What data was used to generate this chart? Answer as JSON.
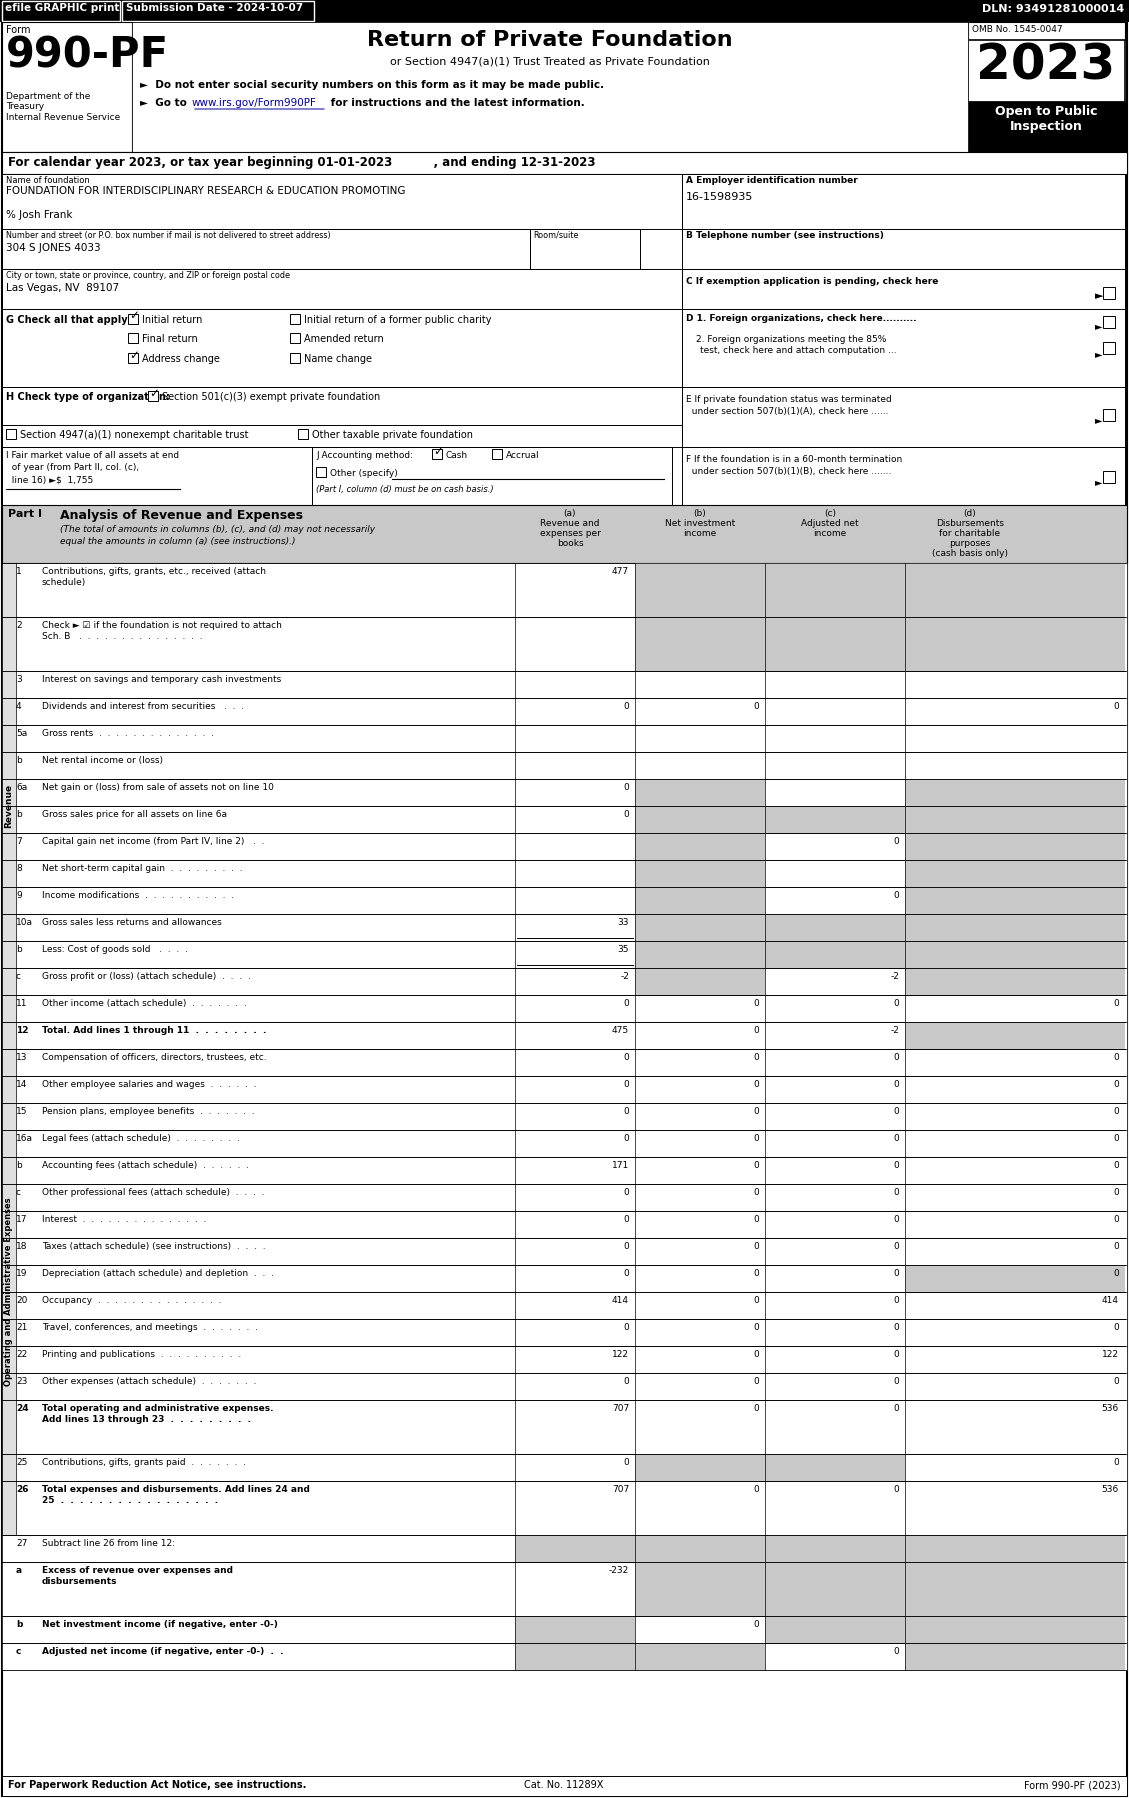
{
  "form_number": "990-PF",
  "omb": "OMB No. 1545-0047",
  "year": "2023",
  "return_title": "Return of Private Foundation",
  "return_subtitle": "or Section 4947(a)(1) Trust Treated as Private Foundation",
  "bullet1": "►  Do not enter social security numbers on this form as it may be made public.",
  "bullet2_pre": "►  Go to ",
  "bullet2_link": "www.irs.gov/Form990PF",
  "bullet2_post": " for instructions and the latest information.",
  "dept": "Department of the\nTreasury\nInternal Revenue Service",
  "cal_year": "For calendar year 2023, or tax year beginning 01-01-2023          , and ending 12-31-2023",
  "name_label": "Name of foundation",
  "name_value": "FOUNDATION FOR INTERDISCIPLINARY RESEARCH & EDUCATION PROMOTING",
  "care_of": "% Josh Frank",
  "address_label": "Number and street (or P.O. box number if mail is not delivered to street address)",
  "address_value": "304 S JONES 4033",
  "room_label": "Room/suite",
  "city_label": "City or town, state or province, country, and ZIP or foreign postal code",
  "city_value": "Las Vegas, NV  89107",
  "ein_label": "A Employer identification number",
  "ein_value": "16-1598935",
  "phone_label": "B Telephone number (see instructions)",
  "exempt_label": "C If exemption application is pending, check here",
  "g_label": "G Check all that apply:",
  "d1_label": "D 1. Foreign organizations, check here.............",
  "d2a_label": "2. Foreign organizations meeting the 85%",
  "d2b_label": "   test, check here and attach computation ...",
  "e_label1": "E If private foundation status was terminated",
  "e_label2": "  under section 507(b)(1)(A), check here ......",
  "h_label": "H Check type of organization:",
  "f_label1": "F If the foundation is in a 60-month termination",
  "f_label2": "  under section 507(b)(1)(B), check here .......",
  "i_label1": "I Fair market value of all assets at end",
  "i_label2": "  of year (from Part II, col. (c),",
  "i_label3": "  line 16) ►$ 1,755",
  "j_label": "J Accounting method:",
  "j_note": "(Part I, column (d) must be on cash basis.)",
  "part1_title": "Part I",
  "part1_subtitle": "Analysis of Revenue and Expenses",
  "part1_italic": "(The total of amounts in columns (b), (c), and (d) may not necessarily equal the amounts in column (a) (see instructions).)",
  "footer_left": "For Paperwork Reduction Act Notice, see instructions.",
  "footer_cat": "Cat. No. 11289X",
  "footer_right": "Form 990-PF (2023)",
  "revenue_rows": [
    {
      "num": "1",
      "label": "Contributions, gifts, grants, etc., received (attach\nschedule)",
      "a": "477",
      "b": "",
      "c": "",
      "d": "",
      "gray_b": true,
      "gray_c": true,
      "gray_d": true
    },
    {
      "num": "2",
      "label": "Check ► ☑ if the foundation is not required to attach\nSch. B   .  .  .  .  .  .  .  .  .  .  .  .  .  .  .",
      "a": "",
      "b": "",
      "c": "",
      "d": "",
      "gray_b": true,
      "gray_c": true,
      "gray_d": true
    },
    {
      "num": "3",
      "label": "Interest on savings and temporary cash investments",
      "a": "",
      "b": "",
      "c": "",
      "d": "",
      "gray_b": false,
      "gray_c": false,
      "gray_d": false
    },
    {
      "num": "4",
      "label": "Dividends and interest from securities   .  .  .",
      "a": "0",
      "b": "0",
      "c": "",
      "d": "0",
      "gray_b": false,
      "gray_c": false,
      "gray_d": false
    },
    {
      "num": "5a",
      "label": "Gross rents  .  .  .  .  .  .  .  .  .  .  .  .  .  .",
      "a": "",
      "b": "",
      "c": "",
      "d": "",
      "gray_b": false,
      "gray_c": false,
      "gray_d": false
    },
    {
      "num": "b",
      "label": "Net rental income or (loss)",
      "a": "",
      "b": "",
      "c": "",
      "d": "",
      "gray_b": false,
      "gray_c": false,
      "gray_d": false
    },
    {
      "num": "6a",
      "label": "Net gain or (loss) from sale of assets not on line 10",
      "a": "0",
      "b": "",
      "c": "",
      "d": "",
      "gray_b": true,
      "gray_c": false,
      "gray_d": true
    },
    {
      "num": "b",
      "label": "Gross sales price for all assets on line 6a",
      "a": "0",
      "b": "",
      "c": "",
      "d": "",
      "gray_b": true,
      "gray_c": true,
      "gray_d": true
    },
    {
      "num": "7",
      "label": "Capital gain net income (from Part IV, line 2)   .  .",
      "a": "",
      "b": "",
      "c": "0",
      "d": "",
      "gray_b": true,
      "gray_c": false,
      "gray_d": true
    },
    {
      "num": "8",
      "label": "Net short-term capital gain  .  .  .  .  .  .  .  .  .",
      "a": "",
      "b": "",
      "c": "",
      "d": "",
      "gray_b": true,
      "gray_c": false,
      "gray_d": true
    },
    {
      "num": "9",
      "label": "Income modifications  .  .  .  .  .  .  .  .  .  .  .",
      "a": "",
      "b": "",
      "c": "0",
      "d": "",
      "gray_b": true,
      "gray_c": false,
      "gray_d": true
    },
    {
      "num": "10a",
      "label": "Gross sales less returns and allowances",
      "a": "33",
      "b": "",
      "c": "",
      "d": "",
      "gray_b": true,
      "gray_c": true,
      "gray_d": true,
      "underline_a": true
    },
    {
      "num": "b",
      "label": "Less: Cost of goods sold   .  .  .  .",
      "a": "35",
      "b": "",
      "c": "",
      "d": "",
      "gray_b": true,
      "gray_c": true,
      "gray_d": true,
      "underline_a": true
    },
    {
      "num": "c",
      "label": "Gross profit or (loss) (attach schedule)  .  .  .  .",
      "a": "-2",
      "b": "",
      "c": "-2",
      "d": "",
      "gray_b": true,
      "gray_c": false,
      "gray_d": true
    },
    {
      "num": "11",
      "label": "Other income (attach schedule)  .  .  .  .  .  .  .",
      "a": "0",
      "b": "0",
      "c": "0",
      "d": "0",
      "gray_b": false,
      "gray_c": false,
      "gray_d": false
    },
    {
      "num": "12",
      "label": "Total. Add lines 1 through 11  .  .  .  .  .  .  .  .",
      "a": "475",
      "b": "0",
      "c": "-2",
      "d": "",
      "bold": true,
      "gray_b": false,
      "gray_c": false,
      "gray_d": true
    }
  ],
  "expense_rows": [
    {
      "num": "13",
      "label": "Compensation of officers, directors, trustees, etc.",
      "a": "0",
      "b": "0",
      "c": "0",
      "d": "0"
    },
    {
      "num": "14",
      "label": "Other employee salaries and wages  .  .  .  .  .  .",
      "a": "0",
      "b": "0",
      "c": "0",
      "d": "0"
    },
    {
      "num": "15",
      "label": "Pension plans, employee benefits  .  .  .  .  .  .  .",
      "a": "0",
      "b": "0",
      "c": "0",
      "d": "0"
    },
    {
      "num": "16a",
      "label": "Legal fees (attach schedule)  .  .  .  .  .  .  .  .",
      "a": "0",
      "b": "0",
      "c": "0",
      "d": "0"
    },
    {
      "num": "b",
      "label": "Accounting fees (attach schedule)  .  .  .  .  .  .",
      "a": "171",
      "b": "0",
      "c": "0",
      "d": "0"
    },
    {
      "num": "c",
      "label": "Other professional fees (attach schedule)  .  .  .  .",
      "a": "0",
      "b": "0",
      "c": "0",
      "d": "0"
    },
    {
      "num": "17",
      "label": "Interest  .  .  .  .  .  .  .  .  .  .  .  .  .  .  .",
      "a": "0",
      "b": "0",
      "c": "0",
      "d": "0"
    },
    {
      "num": "18",
      "label": "Taxes (attach schedule) (see instructions)  .  .  .  .",
      "a": "0",
      "b": "0",
      "c": "0",
      "d": "0"
    },
    {
      "num": "19",
      "label": "Depreciation (attach schedule) and depletion  .  .  .",
      "a": "0",
      "b": "0",
      "c": "0",
      "d": "0",
      "gray_d": true
    },
    {
      "num": "20",
      "label": "Occupancy  .  .  .  .  .  .  .  .  .  .  .  .  .  .  .",
      "a": "414",
      "b": "0",
      "c": "0",
      "d": "414"
    },
    {
      "num": "21",
      "label": "Travel, conferences, and meetings  .  .  .  .  .  .  .",
      "a": "0",
      "b": "0",
      "c": "0",
      "d": "0"
    },
    {
      "num": "22",
      "label": "Printing and publications  .  .  .  .  .  .  .  .  .  .",
      "a": "122",
      "b": "0",
      "c": "0",
      "d": "122"
    },
    {
      "num": "23",
      "label": "Other expenses (attach schedule)  .  .  .  .  .  .  .",
      "a": "0",
      "b": "0",
      "c": "0",
      "d": "0"
    },
    {
      "num": "24",
      "label": "Total operating and administrative expenses.\nAdd lines 13 through 23  .  .  .  .  .  .  .  .  .",
      "a": "707",
      "b": "0",
      "c": "0",
      "d": "536",
      "bold": true
    },
    {
      "num": "25",
      "label": "Contributions, gifts, grants paid  .  .  .  .  .  .  .",
      "a": "0",
      "b": "",
      "c": "",
      "d": "0",
      "gray_b": true,
      "gray_c": true
    },
    {
      "num": "26",
      "label": "Total expenses and disbursements. Add lines 24 and\n25  .  .  .  .  .  .  .  .  .  .  .  .  .  .  .  .  .",
      "a": "707",
      "b": "0",
      "c": "0",
      "d": "536",
      "bold": true
    }
  ],
  "subtract_rows": [
    {
      "num": "27",
      "label": "Subtract line 26 from line 12:",
      "a": "",
      "b": "",
      "c": "",
      "d": "",
      "gray_a": true,
      "gray_b": true,
      "gray_c": true,
      "gray_d": true
    },
    {
      "num": "a",
      "label": "Excess of revenue over expenses and\ndisbursements",
      "a": "-232",
      "b": "",
      "c": "",
      "d": "",
      "bold": true,
      "gray_b": true,
      "gray_c": true,
      "gray_d": true
    },
    {
      "num": "b",
      "label": "Net investment income (if negative, enter -0-)",
      "a": "",
      "b": "0",
      "c": "",
      "d": "",
      "bold": true,
      "gray_a": true,
      "gray_c": true,
      "gray_d": true
    },
    {
      "num": "c",
      "label": "Adjusted net income (if negative, enter -0-)  .  .",
      "a": "",
      "b": "",
      "c": "0",
      "d": "",
      "bold": true,
      "gray_a": true,
      "gray_b": true,
      "gray_d": true
    }
  ]
}
